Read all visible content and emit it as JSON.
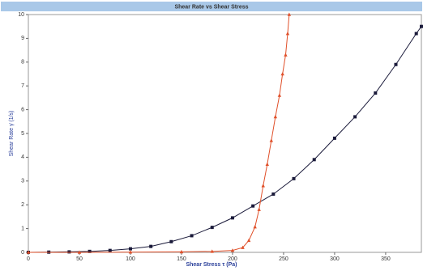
{
  "chart_data": {
    "type": "scatter",
    "title": "Shear Rate vs Shear Stress",
    "x_label": "Shear Stress τ (Pa)",
    "y_label": "Shear Rate γ̇ (1/s)",
    "xlim": [
      0,
      385
    ],
    "xticks": [
      0,
      50,
      100,
      150,
      200,
      250,
      300,
      350
    ],
    "ylim": [
      0,
      10
    ],
    "yticks": [
      0,
      1,
      2,
      3,
      4,
      5,
      6,
      7,
      8,
      9,
      10
    ],
    "grid": false,
    "series": [
      {
        "color": "#1a1a3a",
        "marker": "square",
        "x": [
          0,
          20,
          40,
          60,
          80,
          100,
          120,
          140,
          160,
          180,
          200,
          220,
          240,
          260,
          280,
          300,
          320,
          340,
          360,
          380,
          385
        ],
        "values": [
          0,
          0.01,
          0.02,
          0.04,
          0.08,
          0.15,
          0.25,
          0.45,
          0.7,
          1.05,
          1.45,
          1.95,
          2.45,
          3.1,
          3.9,
          4.8,
          5.7,
          6.7,
          7.9,
          9.2,
          9.5
        ]
      },
      {
        "color": "#e0502a",
        "marker": "triangle",
        "x": [
          0,
          50,
          100,
          150,
          180,
          200,
          210,
          216,
          222,
          226,
          230,
          234,
          238,
          242,
          246,
          249,
          252,
          254,
          255.5
        ],
        "values": [
          0,
          0,
          0.01,
          0.02,
          0.04,
          0.08,
          0.2,
          0.5,
          1.07,
          1.8,
          2.8,
          3.7,
          4.7,
          5.7,
          6.6,
          7.5,
          8.3,
          9.2,
          10
        ]
      }
    ]
  }
}
